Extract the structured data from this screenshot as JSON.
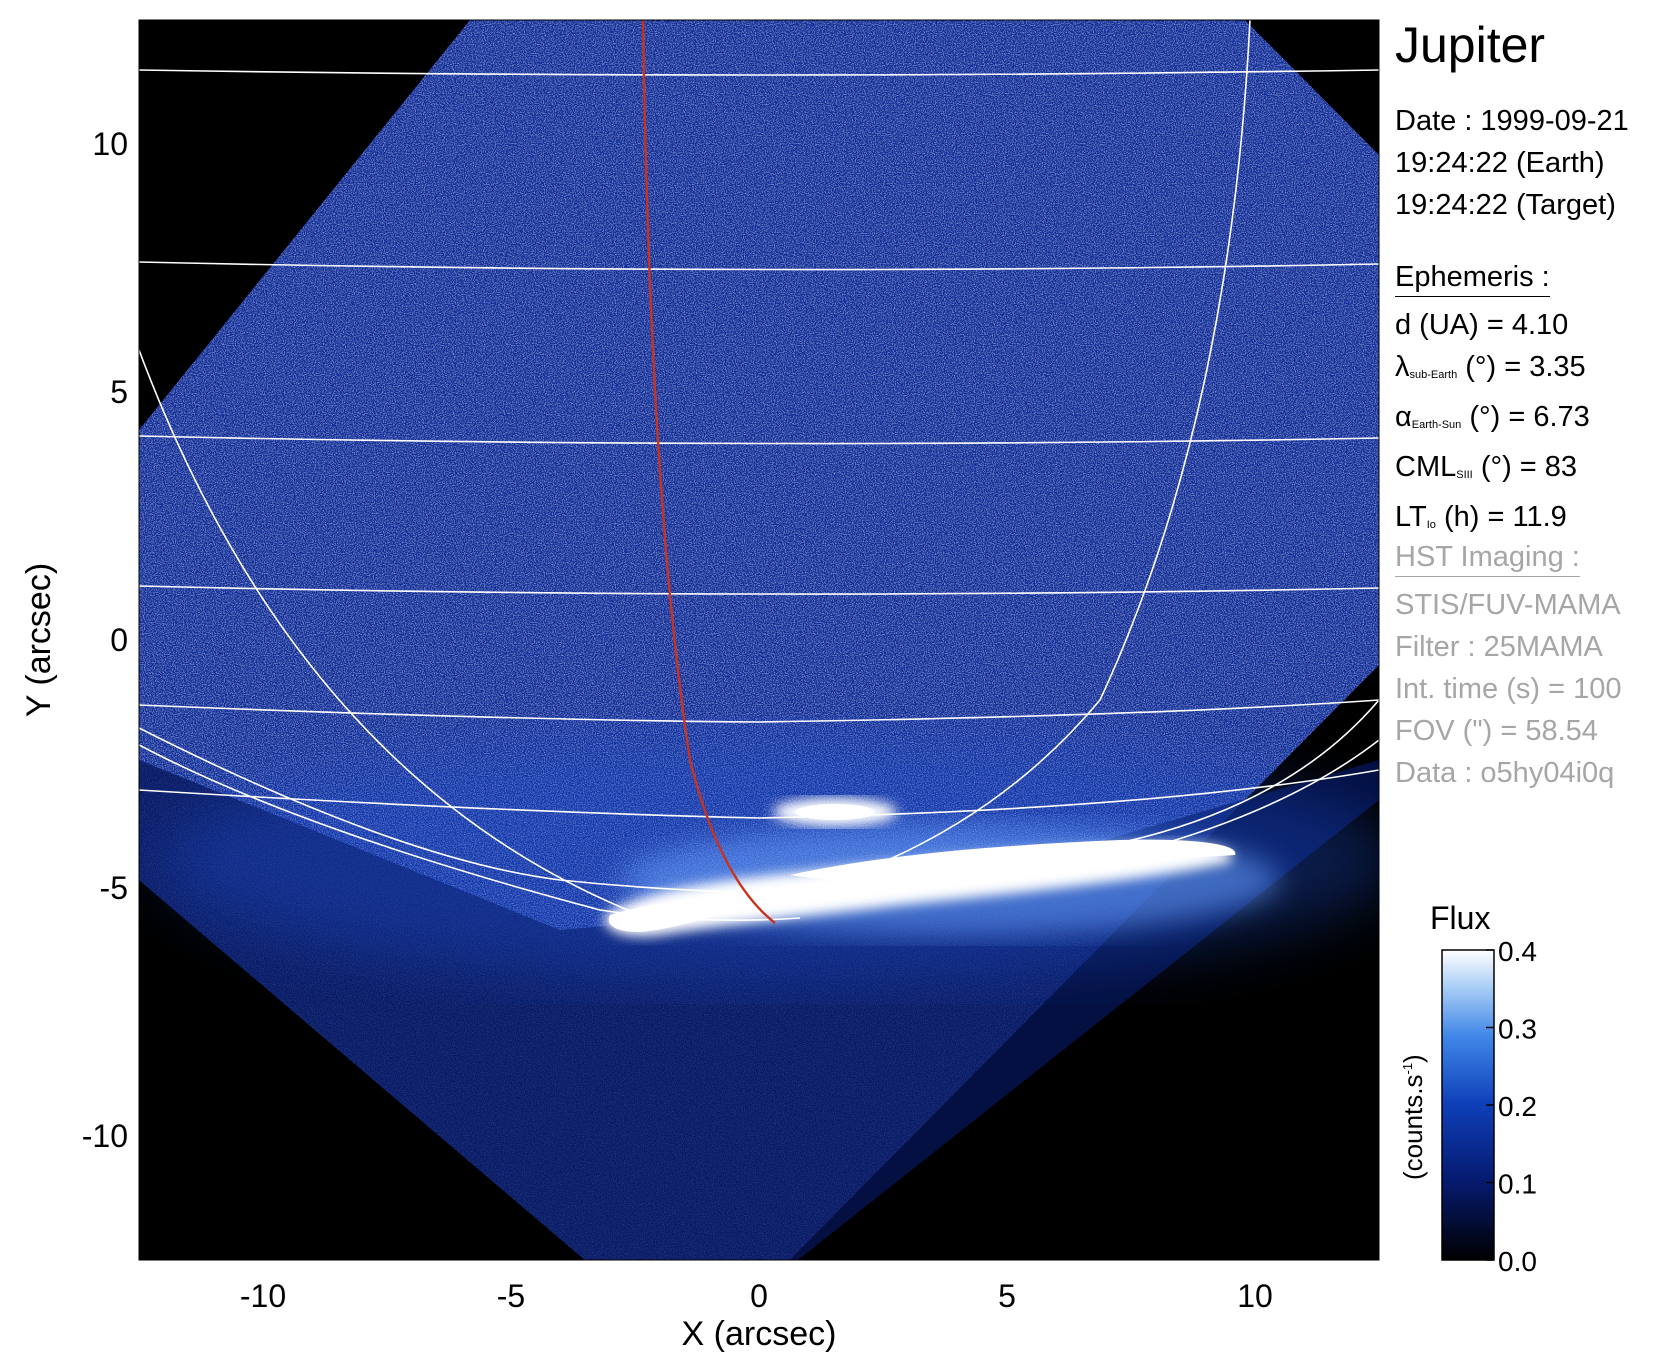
{
  "panel": {
    "title": "Jupiter",
    "date_line": "Date : 1999-09-21",
    "time_earth": "19:24:22 (Earth)",
    "time_target": "19:24:22 (Target)",
    "ephemeris_header": "Ephemeris :",
    "ephemeris": [
      {
        "label": "d (UA)",
        "sub": "",
        "unit": "",
        "value": "= 4.10"
      },
      {
        "label": "λ",
        "sub": "sub-Earth",
        "unit": "(°)",
        "value": "= 3.35"
      },
      {
        "label": "α",
        "sub": "Earth-Sun",
        "unit": "(°)",
        "value": "= 6.73"
      },
      {
        "label": "CML",
        "sub": "SIII",
        "unit": "(°)",
        "value": "= 83"
      },
      {
        "label": "LT",
        "sub": "Io",
        "unit": "(h)",
        "value": "= 11.9"
      }
    ],
    "hst_header": "HST Imaging :",
    "hst_lines": [
      "STIS/FUV-MAMA",
      "Filter : 25MAMA",
      "Int. time (s) = 100",
      "FOV (\") = 58.54",
      "Data : o5hy04i0q"
    ]
  },
  "chart_data": {
    "type": "heatmap",
    "xlabel": "X (arcsec)",
    "ylabel": "Y (arcsec)",
    "xlim": [
      -12.5,
      12.5
    ],
    "ylim": [
      -12.5,
      12.5
    ],
    "xticks": [
      "-10",
      "-5",
      "0",
      "5",
      "10"
    ],
    "yticks": [
      "10",
      "5",
      "0",
      "-5",
      "-10"
    ],
    "xtick_values": [
      -10,
      -5,
      0,
      5,
      10
    ],
    "ytick_values": [
      10,
      5,
      0,
      -5,
      -10
    ],
    "colorbar": {
      "title": "Flux",
      "unit_label": "(counts.s",
      "unit_sup": "-1",
      "unit_close": ")",
      "range": [
        0.0,
        0.4
      ],
      "ticks": [
        "0.4",
        "0.3",
        "0.2",
        "0.1",
        "0.0"
      ],
      "tick_values": [
        0.4,
        0.3,
        0.2,
        0.1,
        0.0
      ]
    },
    "colors": {
      "background": "#000000",
      "disk": "#0b2f9a",
      "aurora": "#ffffff",
      "grid": "#ffffff",
      "footpath": "#c8321e"
    }
  }
}
